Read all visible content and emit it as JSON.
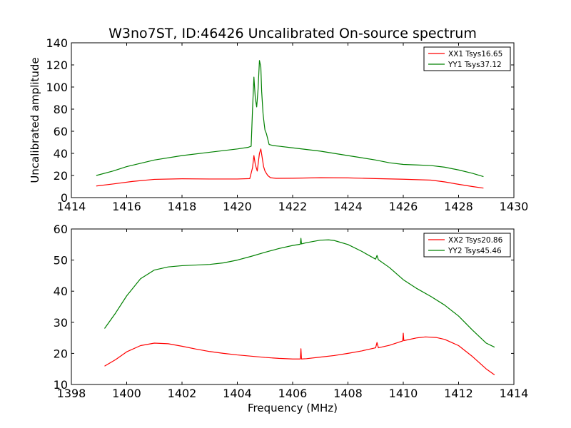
{
  "title": "W3no7ST, ID:46426 Uncalibrated On-source spectrum",
  "colors": {
    "xx": "#ff0000",
    "yy": "#008000"
  },
  "chart_data": [
    {
      "type": "line",
      "ylabel": "Uncalibrated amplitude",
      "xlabel": "",
      "xlim": [
        1414,
        1430
      ],
      "ylim": [
        0,
        140
      ],
      "xticks": [
        1414,
        1416,
        1418,
        1420,
        1422,
        1424,
        1426,
        1428,
        1430
      ],
      "yticks": [
        0,
        20,
        40,
        60,
        80,
        100,
        120,
        140
      ],
      "legend_position": "top-right",
      "series": [
        {
          "name": "XX1 Tsys16.65",
          "color": "#ff0000",
          "points": [
            [
              1414.9,
              10.5
            ],
            [
              1415.5,
              12.3
            ],
            [
              1416.2,
              14.6
            ],
            [
              1417.0,
              16.5
            ],
            [
              1418.0,
              17.0
            ],
            [
              1419.0,
              16.8
            ],
            [
              1420.0,
              16.8
            ],
            [
              1420.45,
              17.2
            ],
            [
              1420.55,
              27
            ],
            [
              1420.6,
              38
            ],
            [
              1420.65,
              30
            ],
            [
              1420.72,
              24
            ],
            [
              1420.8,
              40
            ],
            [
              1420.85,
              44
            ],
            [
              1420.9,
              36
            ],
            [
              1420.95,
              28
            ],
            [
              1421.0,
              24
            ],
            [
              1421.05,
              22
            ],
            [
              1421.1,
              20
            ],
            [
              1421.2,
              18
            ],
            [
              1421.4,
              17.4
            ],
            [
              1422.0,
              17.5
            ],
            [
              1423.0,
              18.0
            ],
            [
              1424.0,
              17.8
            ],
            [
              1425.0,
              17.2
            ],
            [
              1426.0,
              16.6
            ],
            [
              1427.0,
              15.8
            ],
            [
              1427.5,
              14.2
            ],
            [
              1428.0,
              12.0
            ],
            [
              1428.5,
              10.0
            ],
            [
              1428.9,
              8.6
            ]
          ]
        },
        {
          "name": "YY1 Tsys37.12",
          "color": "#008000",
          "points": [
            [
              1414.9,
              20
            ],
            [
              1415.5,
              24
            ],
            [
              1416.0,
              28
            ],
            [
              1416.5,
              31
            ],
            [
              1417.0,
              34
            ],
            [
              1418.0,
              38
            ],
            [
              1419.0,
              41
            ],
            [
              1420.0,
              44
            ],
            [
              1420.4,
              45.5
            ],
            [
              1420.5,
              46.5
            ],
            [
              1420.55,
              80
            ],
            [
              1420.6,
              109
            ],
            [
              1420.65,
              90
            ],
            [
              1420.7,
              82
            ],
            [
              1420.75,
              98
            ],
            [
              1420.8,
              124
            ],
            [
              1420.85,
              118
            ],
            [
              1420.88,
              96
            ],
            [
              1420.93,
              76
            ],
            [
              1420.97,
              67
            ],
            [
              1421.0,
              61
            ],
            [
              1421.05,
              58
            ],
            [
              1421.1,
              53
            ],
            [
              1421.15,
              48
            ],
            [
              1421.3,
              47
            ],
            [
              1421.5,
              46.5
            ],
            [
              1422.0,
              45
            ],
            [
              1423.0,
              42
            ],
            [
              1424.0,
              38
            ],
            [
              1425.0,
              34
            ],
            [
              1425.5,
              31.5
            ],
            [
              1426.0,
              30
            ],
            [
              1426.5,
              29.5
            ],
            [
              1427.0,
              29
            ],
            [
              1427.5,
              27.5
            ],
            [
              1428.0,
              25
            ],
            [
              1428.5,
              22
            ],
            [
              1428.9,
              19
            ]
          ]
        }
      ]
    },
    {
      "type": "line",
      "ylabel": "",
      "xlabel": "Frequency (MHz)",
      "xlim": [
        1398,
        1414
      ],
      "ylim": [
        10,
        60
      ],
      "xticks": [
        1398,
        1400,
        1402,
        1404,
        1406,
        1408,
        1410,
        1412,
        1414
      ],
      "yticks": [
        10,
        20,
        30,
        40,
        50,
        60
      ],
      "legend_position": "top-right",
      "series": [
        {
          "name": "XX2 Tsys20.86",
          "color": "#ff0000",
          "points": [
            [
              1399.2,
              15.9
            ],
            [
              1399.6,
              18.0
            ],
            [
              1400.0,
              20.5
            ],
            [
              1400.5,
              22.5
            ],
            [
              1401.0,
              23.3
            ],
            [
              1401.5,
              23.1
            ],
            [
              1402.0,
              22.3
            ],
            [
              1402.5,
              21.4
            ],
            [
              1403.0,
              20.6
            ],
            [
              1403.5,
              20.0
            ],
            [
              1404.0,
              19.5
            ],
            [
              1404.5,
              19.1
            ],
            [
              1405.0,
              18.7
            ],
            [
              1405.5,
              18.4
            ],
            [
              1406.0,
              18.2
            ],
            [
              1406.28,
              18.2
            ],
            [
              1406.3,
              21.5
            ],
            [
              1406.32,
              18.2
            ],
            [
              1406.5,
              18.3
            ],
            [
              1407.0,
              18.8
            ],
            [
              1407.5,
              19.3
            ],
            [
              1408.0,
              20.0
            ],
            [
              1408.5,
              20.8
            ],
            [
              1409.0,
              21.8
            ],
            [
              1409.05,
              23.5
            ],
            [
              1409.1,
              21.8
            ],
            [
              1409.5,
              22.6
            ],
            [
              1409.98,
              24.0
            ],
            [
              1410.0,
              26.5
            ],
            [
              1410.02,
              24.1
            ],
            [
              1410.5,
              25.0
            ],
            [
              1410.8,
              25.3
            ],
            [
              1411.2,
              25.1
            ],
            [
              1411.5,
              24.5
            ],
            [
              1412.0,
              22.5
            ],
            [
              1412.5,
              19.0
            ],
            [
              1413.0,
              15.0
            ],
            [
              1413.3,
              13.1
            ]
          ]
        },
        {
          "name": "YY2 Tsys45.46",
          "color": "#008000",
          "points": [
            [
              1399.2,
              28
            ],
            [
              1399.6,
              33
            ],
            [
              1400.0,
              38.5
            ],
            [
              1400.5,
              44
            ],
            [
              1401.0,
              46.8
            ],
            [
              1401.5,
              47.8
            ],
            [
              1402.0,
              48.2
            ],
            [
              1402.5,
              48.4
            ],
            [
              1403.0,
              48.6
            ],
            [
              1403.5,
              49.1
            ],
            [
              1404.0,
              50.0
            ],
            [
              1404.5,
              51.2
            ],
            [
              1405.0,
              52.5
            ],
            [
              1405.5,
              53.7
            ],
            [
              1406.0,
              54.7
            ],
            [
              1406.28,
              55.1
            ],
            [
              1406.3,
              57.0
            ],
            [
              1406.32,
              55.2
            ],
            [
              1406.5,
              55.6
            ],
            [
              1407.0,
              56.4
            ],
            [
              1407.3,
              56.5
            ],
            [
              1407.5,
              56.3
            ],
            [
              1408.0,
              55.0
            ],
            [
              1408.5,
              52.8
            ],
            [
              1409.0,
              50.3
            ],
            [
              1409.05,
              51.5
            ],
            [
              1409.1,
              50.1
            ],
            [
              1409.5,
              47.6
            ],
            [
              1410.0,
              43.7
            ],
            [
              1410.5,
              40.8
            ],
            [
              1411.0,
              38.3
            ],
            [
              1411.5,
              35.5
            ],
            [
              1412.0,
              32.0
            ],
            [
              1412.5,
              27.5
            ],
            [
              1413.0,
              23.3
            ],
            [
              1413.3,
              22.0
            ]
          ]
        }
      ]
    }
  ]
}
